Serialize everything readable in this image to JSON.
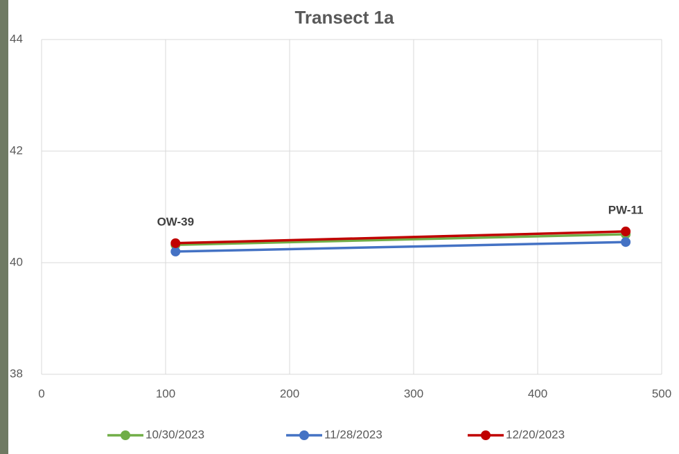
{
  "chart_data": {
    "type": "line",
    "title": "Transect 1a",
    "x": [
      108,
      471
    ],
    "point_labels": [
      "OW-39",
      "PW-11"
    ],
    "series": [
      {
        "name": "10/30/2023",
        "color": "#70ad47",
        "values": [
          40.32,
          40.51
        ]
      },
      {
        "name": "11/28/2023",
        "color": "#4472c4",
        "values": [
          40.2,
          40.37
        ]
      },
      {
        "name": "12/20/2023",
        "color": "#c00000",
        "values": [
          40.35,
          40.56
        ]
      }
    ],
    "xlim": [
      0,
      500
    ],
    "xticks": [
      0,
      100,
      200,
      300,
      400,
      500
    ],
    "ylim": [
      38,
      44
    ],
    "yticks": [
      38,
      40,
      42,
      44
    ],
    "grid": true,
    "legend": "bottom"
  }
}
